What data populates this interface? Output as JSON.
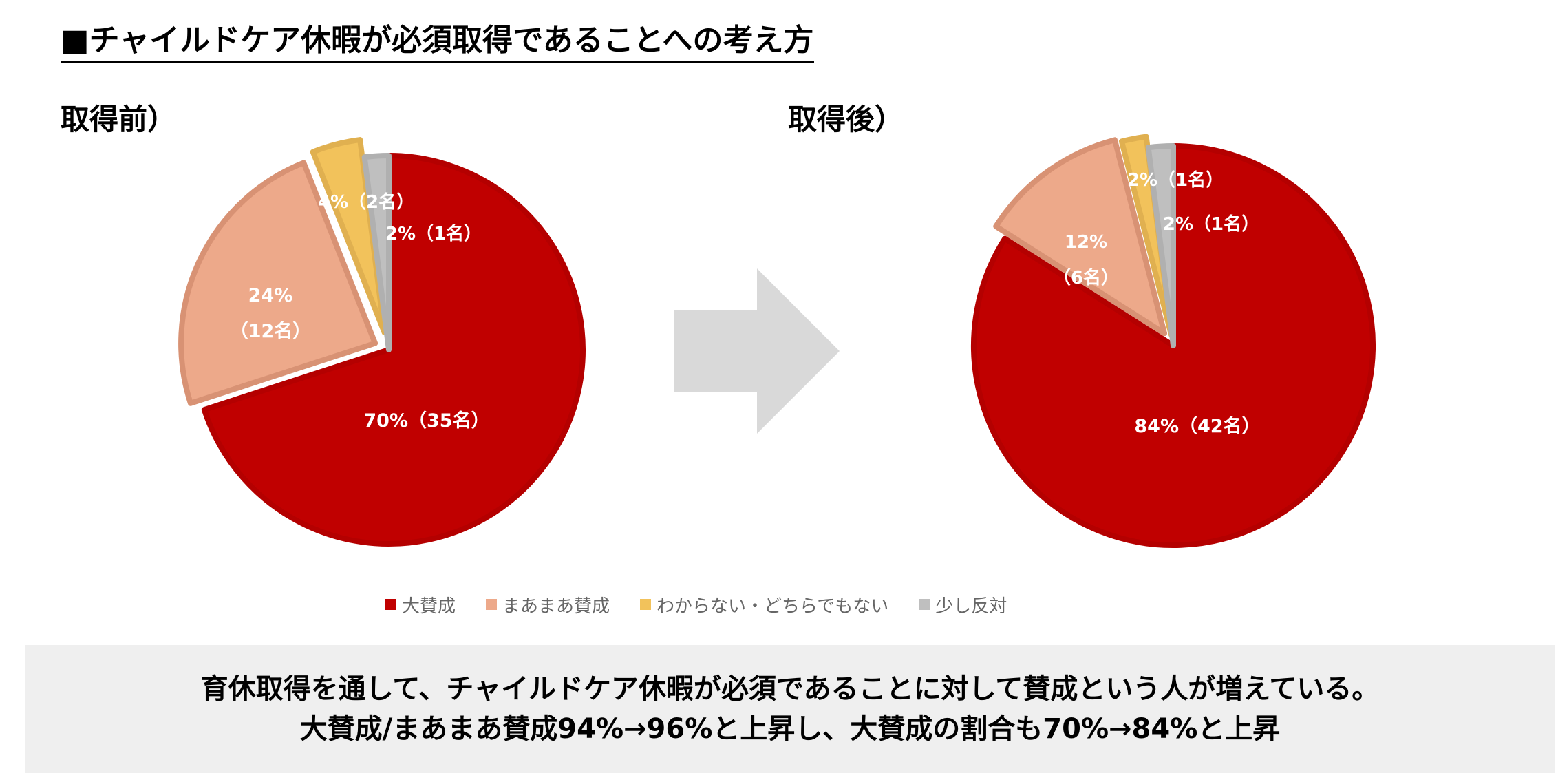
{
  "title": "■チャイルドケア休暇が必須取得であることへの考え方",
  "chart_data": [
    {
      "type": "pie",
      "title": "取得前）",
      "categories": [
        "大賛成",
        "まあまあ賛成",
        "わからない・どちらでもない",
        "少し反対"
      ],
      "values": [
        70,
        24,
        4,
        2
      ],
      "counts": [
        35,
        12,
        2,
        1
      ],
      "labels": [
        "70%（35名）",
        "24%（12名）",
        "4%（2名）",
        "2%（1名）"
      ]
    },
    {
      "type": "pie",
      "title": "取得後）",
      "categories": [
        "大賛成",
        "まあまあ賛成",
        "わからない・どちらでもない",
        "少し反対"
      ],
      "values": [
        84,
        12,
        2,
        2
      ],
      "counts": [
        42,
        6,
        1,
        1
      ],
      "labels": [
        "84%（42名）",
        "12%（6名）",
        "2%（1名）",
        "2%（1名）"
      ]
    }
  ],
  "legend": {
    "items": [
      {
        "label": "大賛成",
        "color": "#c00000"
      },
      {
        "label": "まあまあ賛成",
        "color": "#eda98a"
      },
      {
        "label": "わからない・どちらでもない",
        "color": "#f2c25b"
      },
      {
        "label": "少し反対",
        "color": "#bfbfbf"
      }
    ]
  },
  "slice_colors": {
    "fill": [
      "#c00000",
      "#eda98a",
      "#f2c25b",
      "#bfbfbf"
    ],
    "edge": [
      "#b40000",
      "#d89274",
      "#e0b050",
      "#b0b0b0"
    ]
  },
  "summary": {
    "line1": "育休取得を通して、チャイルドケア休暇が必須であることに対して賛成という人が増えている。",
    "line2": "大賛成/まあまあ賛成94%→96%と上昇し、大賛成の割合も70%→84%と上昇"
  }
}
